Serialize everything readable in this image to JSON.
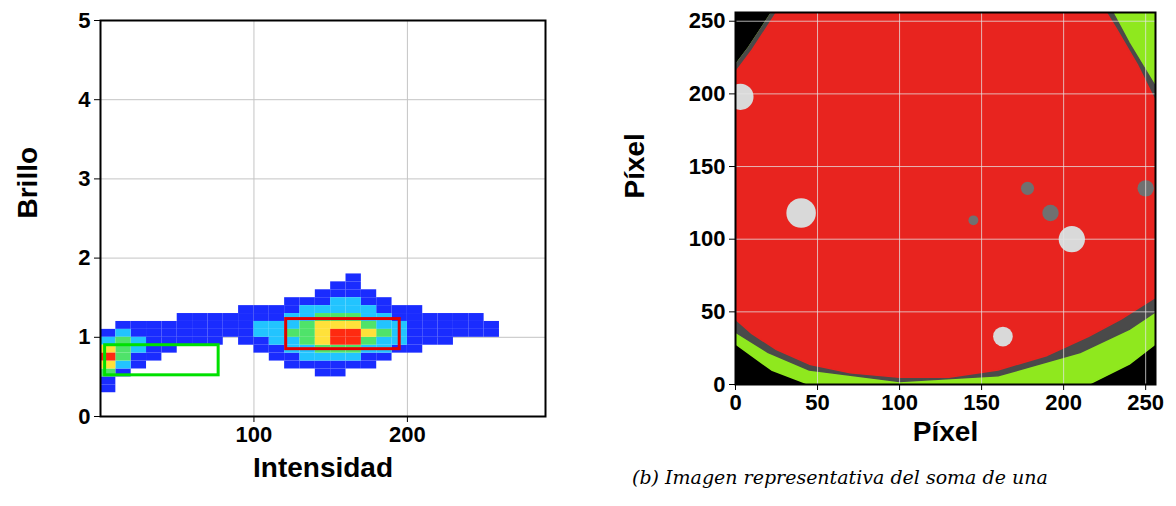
{
  "chart_data": [
    {
      "type": "density",
      "xlabel": "Intensidad",
      "ylabel": "Brillo",
      "xlim": [
        0,
        290
      ],
      "ylim": [
        0,
        5
      ],
      "xticks": [
        100,
        200
      ],
      "yticks": [
        0,
        1,
        2,
        3,
        4,
        5
      ],
      "grid": true,
      "x_edges": [
        0,
        10,
        20,
        30,
        40,
        50,
        60,
        70,
        80,
        90,
        100,
        110,
        120,
        130,
        140,
        150,
        160,
        170,
        180,
        190,
        200,
        210,
        220,
        230,
        240,
        250,
        260
      ],
      "y_edges": [
        0.3,
        0.4,
        0.5,
        0.6,
        0.7,
        0.8,
        0.9,
        1.0,
        1.1,
        1.2,
        1.3,
        1.4,
        1.5,
        1.6,
        1.7,
        1.8
      ],
      "density": [
        [
          1,
          0,
          0,
          0,
          0,
          0,
          0,
          0,
          0,
          0,
          0,
          0,
          0,
          0,
          0,
          0,
          0,
          0,
          0,
          0,
          0,
          0,
          0,
          0,
          0,
          0
        ],
        [
          1,
          0,
          0,
          0,
          0,
          0,
          0,
          0,
          0,
          0,
          0,
          0,
          0,
          0,
          0,
          0,
          0,
          0,
          0,
          0,
          0,
          0,
          0,
          0,
          0,
          0
        ],
        [
          3,
          1,
          0,
          0,
          0,
          0,
          0,
          0,
          0,
          0,
          0,
          0,
          0,
          0,
          1,
          1,
          0,
          0,
          0,
          0,
          0,
          0,
          0,
          0,
          0,
          0
        ],
        [
          4,
          2,
          1,
          0,
          0,
          0,
          0,
          0,
          0,
          0,
          0,
          0,
          1,
          1,
          1,
          1,
          1,
          1,
          0,
          0,
          0,
          0,
          0,
          0,
          0,
          0
        ],
        [
          5,
          3,
          1,
          1,
          0,
          0,
          0,
          0,
          0,
          0,
          0,
          1,
          1,
          2,
          2,
          2,
          2,
          1,
          1,
          0,
          0,
          0,
          0,
          0,
          0,
          0
        ],
        [
          4,
          3,
          2,
          1,
          1,
          0,
          0,
          0,
          0,
          0,
          1,
          1,
          2,
          2,
          3,
          3,
          3,
          2,
          2,
          1,
          1,
          0,
          0,
          0,
          0,
          0
        ],
        [
          2,
          3,
          2,
          1,
          1,
          1,
          1,
          1,
          0,
          1,
          1,
          2,
          2,
          3,
          4,
          5,
          5,
          3,
          2,
          2,
          1,
          1,
          1,
          0,
          0,
          0
        ],
        [
          1,
          2,
          1,
          1,
          1,
          1,
          1,
          1,
          1,
          1,
          2,
          2,
          3,
          3,
          4,
          5,
          5,
          4,
          3,
          2,
          1,
          1,
          1,
          1,
          1,
          1
        ],
        [
          0,
          1,
          1,
          1,
          1,
          1,
          1,
          1,
          1,
          1,
          2,
          2,
          2,
          3,
          4,
          4,
          4,
          3,
          2,
          2,
          1,
          1,
          1,
          1,
          1,
          1
        ],
        [
          0,
          0,
          0,
          0,
          0,
          1,
          1,
          1,
          1,
          1,
          1,
          1,
          2,
          2,
          3,
          3,
          3,
          2,
          2,
          1,
          1,
          1,
          1,
          1,
          1,
          0
        ],
        [
          0,
          0,
          0,
          0,
          0,
          0,
          0,
          0,
          0,
          1,
          1,
          1,
          1,
          2,
          2,
          2,
          2,
          2,
          1,
          1,
          1,
          0,
          0,
          0,
          0,
          0
        ],
        [
          0,
          0,
          0,
          0,
          0,
          0,
          0,
          0,
          0,
          0,
          0,
          0,
          1,
          1,
          1,
          2,
          2,
          1,
          1,
          0,
          0,
          0,
          0,
          0,
          0,
          0
        ],
        [
          0,
          0,
          0,
          0,
          0,
          0,
          0,
          0,
          0,
          0,
          0,
          0,
          0,
          0,
          1,
          1,
          1,
          1,
          0,
          0,
          0,
          0,
          0,
          0,
          0,
          0
        ],
        [
          0,
          0,
          0,
          0,
          0,
          0,
          0,
          0,
          0,
          0,
          0,
          0,
          0,
          0,
          0,
          1,
          1,
          0,
          0,
          0,
          0,
          0,
          0,
          0,
          0,
          0
        ],
        [
          0,
          0,
          0,
          0,
          0,
          0,
          0,
          0,
          0,
          0,
          0,
          0,
          0,
          0,
          0,
          0,
          1,
          0,
          0,
          0,
          0,
          0,
          0,
          0,
          0,
          0
        ]
      ],
      "boxes": [
        {
          "color": "#00e000",
          "x": [
            3,
            77
          ],
          "y": [
            0.52,
            0.9
          ]
        },
        {
          "color": "#e00000",
          "x": [
            121,
            195
          ],
          "y": [
            0.85,
            1.23
          ]
        }
      ]
    },
    {
      "type": "image",
      "xlabel": "Píxel",
      "ylabel": "Píxel",
      "xlim": [
        0,
        256
      ],
      "ylim": [
        0,
        256
      ],
      "xticks": [
        0,
        50,
        100,
        150,
        200,
        250
      ],
      "yticks": [
        0,
        50,
        100,
        150,
        200,
        250
      ],
      "grid": true,
      "caption": "(b) Imagen representativa del soma de una",
      "regions": [
        {
          "color": "#8fe81e",
          "points": [
            [
              0,
              28
            ],
            [
              22,
              10
            ],
            [
              45,
              0
            ],
            [
              215,
              0
            ],
            [
              240,
              14
            ],
            [
              256,
              28
            ],
            [
              256,
              256
            ],
            [
              22,
              256
            ],
            [
              8,
              232
            ],
            [
              0,
              220
            ]
          ]
        },
        {
          "color": "#4a4a4a",
          "points": [
            [
              0,
              36
            ],
            [
              20,
              22
            ],
            [
              45,
              10
            ],
            [
              100,
              2
            ],
            [
              160,
              6
            ],
            [
              210,
              22
            ],
            [
              240,
              38
            ],
            [
              256,
              50
            ],
            [
              256,
              205
            ],
            [
              240,
              235
            ],
            [
              230,
              256
            ],
            [
              22,
              256
            ],
            [
              8,
              232
            ],
            [
              0,
              220
            ]
          ]
        },
        {
          "color": "#e8241f",
          "points": [
            [
              0,
              45
            ],
            [
              10,
              35
            ],
            [
              25,
              24
            ],
            [
              45,
              14
            ],
            [
              70,
              8
            ],
            [
              100,
              5
            ],
            [
              130,
              5
            ],
            [
              160,
              10
            ],
            [
              190,
              20
            ],
            [
              215,
              33
            ],
            [
              235,
              45
            ],
            [
              256,
              60
            ],
            [
              256,
              195
            ],
            [
              245,
              220
            ],
            [
              232,
              245
            ],
            [
              226,
              256
            ],
            [
              25,
              256
            ],
            [
              10,
              230
            ],
            [
              0,
              215
            ]
          ]
        }
      ],
      "spots": [
        {
          "color": "#d9d9d9",
          "x": 3,
          "y": 198,
          "r": 8
        },
        {
          "color": "#d9d9d9",
          "x": 40,
          "y": 118,
          "r": 9
        },
        {
          "color": "#d9d9d9",
          "x": 205,
          "y": 100,
          "r": 8
        },
        {
          "color": "#d9d9d9",
          "x": 163,
          "y": 33,
          "r": 6
        },
        {
          "color": "#707070",
          "x": 178,
          "y": 135,
          "r": 4
        },
        {
          "color": "#707070",
          "x": 192,
          "y": 118,
          "r": 5
        },
        {
          "color": "#707070",
          "x": 250,
          "y": 135,
          "r": 5
        },
        {
          "color": "#707070",
          "x": 145,
          "y": 113,
          "r": 3
        }
      ]
    }
  ]
}
